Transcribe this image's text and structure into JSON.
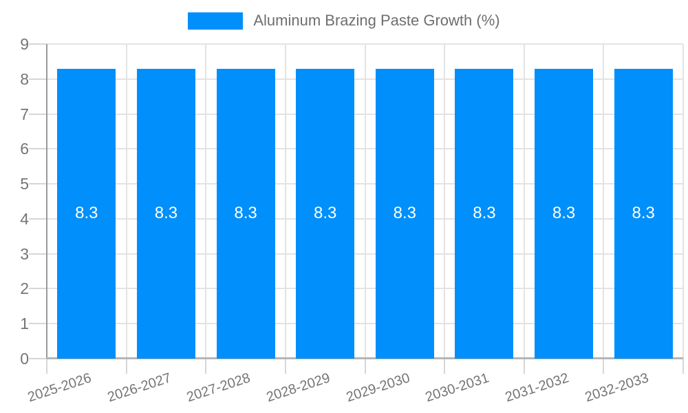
{
  "legend": {
    "label": "Aluminum Brazing Paste Growth (%)"
  },
  "chart_data": {
    "type": "bar",
    "title": "Aluminum Brazing Paste Growth (%)",
    "categories": [
      "2025-2026",
      "2026-2027",
      "2027-2028",
      "2028-2029",
      "2029-2030",
      "2030-2031",
      "2031-2032",
      "2032-2033"
    ],
    "series": [
      {
        "name": "Aluminum Brazing Paste Growth (%)",
        "values": [
          8.3,
          8.3,
          8.3,
          8.3,
          8.3,
          8.3,
          8.3,
          8.3
        ]
      }
    ],
    "bar_value_labels": [
      "8.3",
      "8.3",
      "8.3",
      "8.3",
      "8.3",
      "8.3",
      "8.3",
      "8.3"
    ],
    "xlabel": "",
    "ylabel": "",
    "ylim": [
      0,
      9
    ],
    "y_ticks": [
      0,
      1,
      2,
      3,
      4,
      5,
      6,
      7,
      8,
      9
    ],
    "grid": true,
    "legend_position": "top",
    "x_label_rotation_deg": -18,
    "colors": {
      "bar": "#008FFB",
      "bar_label": "#FFFFFF",
      "axis_text": "#757575",
      "legend_text": "#6E6E6E",
      "grid_line": "#E3E3E3",
      "tick_line": "#D6D6D6",
      "y_axis_line": "#999999",
      "x_axis_line": "#B5B5B5",
      "background": "#FFFFFF"
    }
  }
}
